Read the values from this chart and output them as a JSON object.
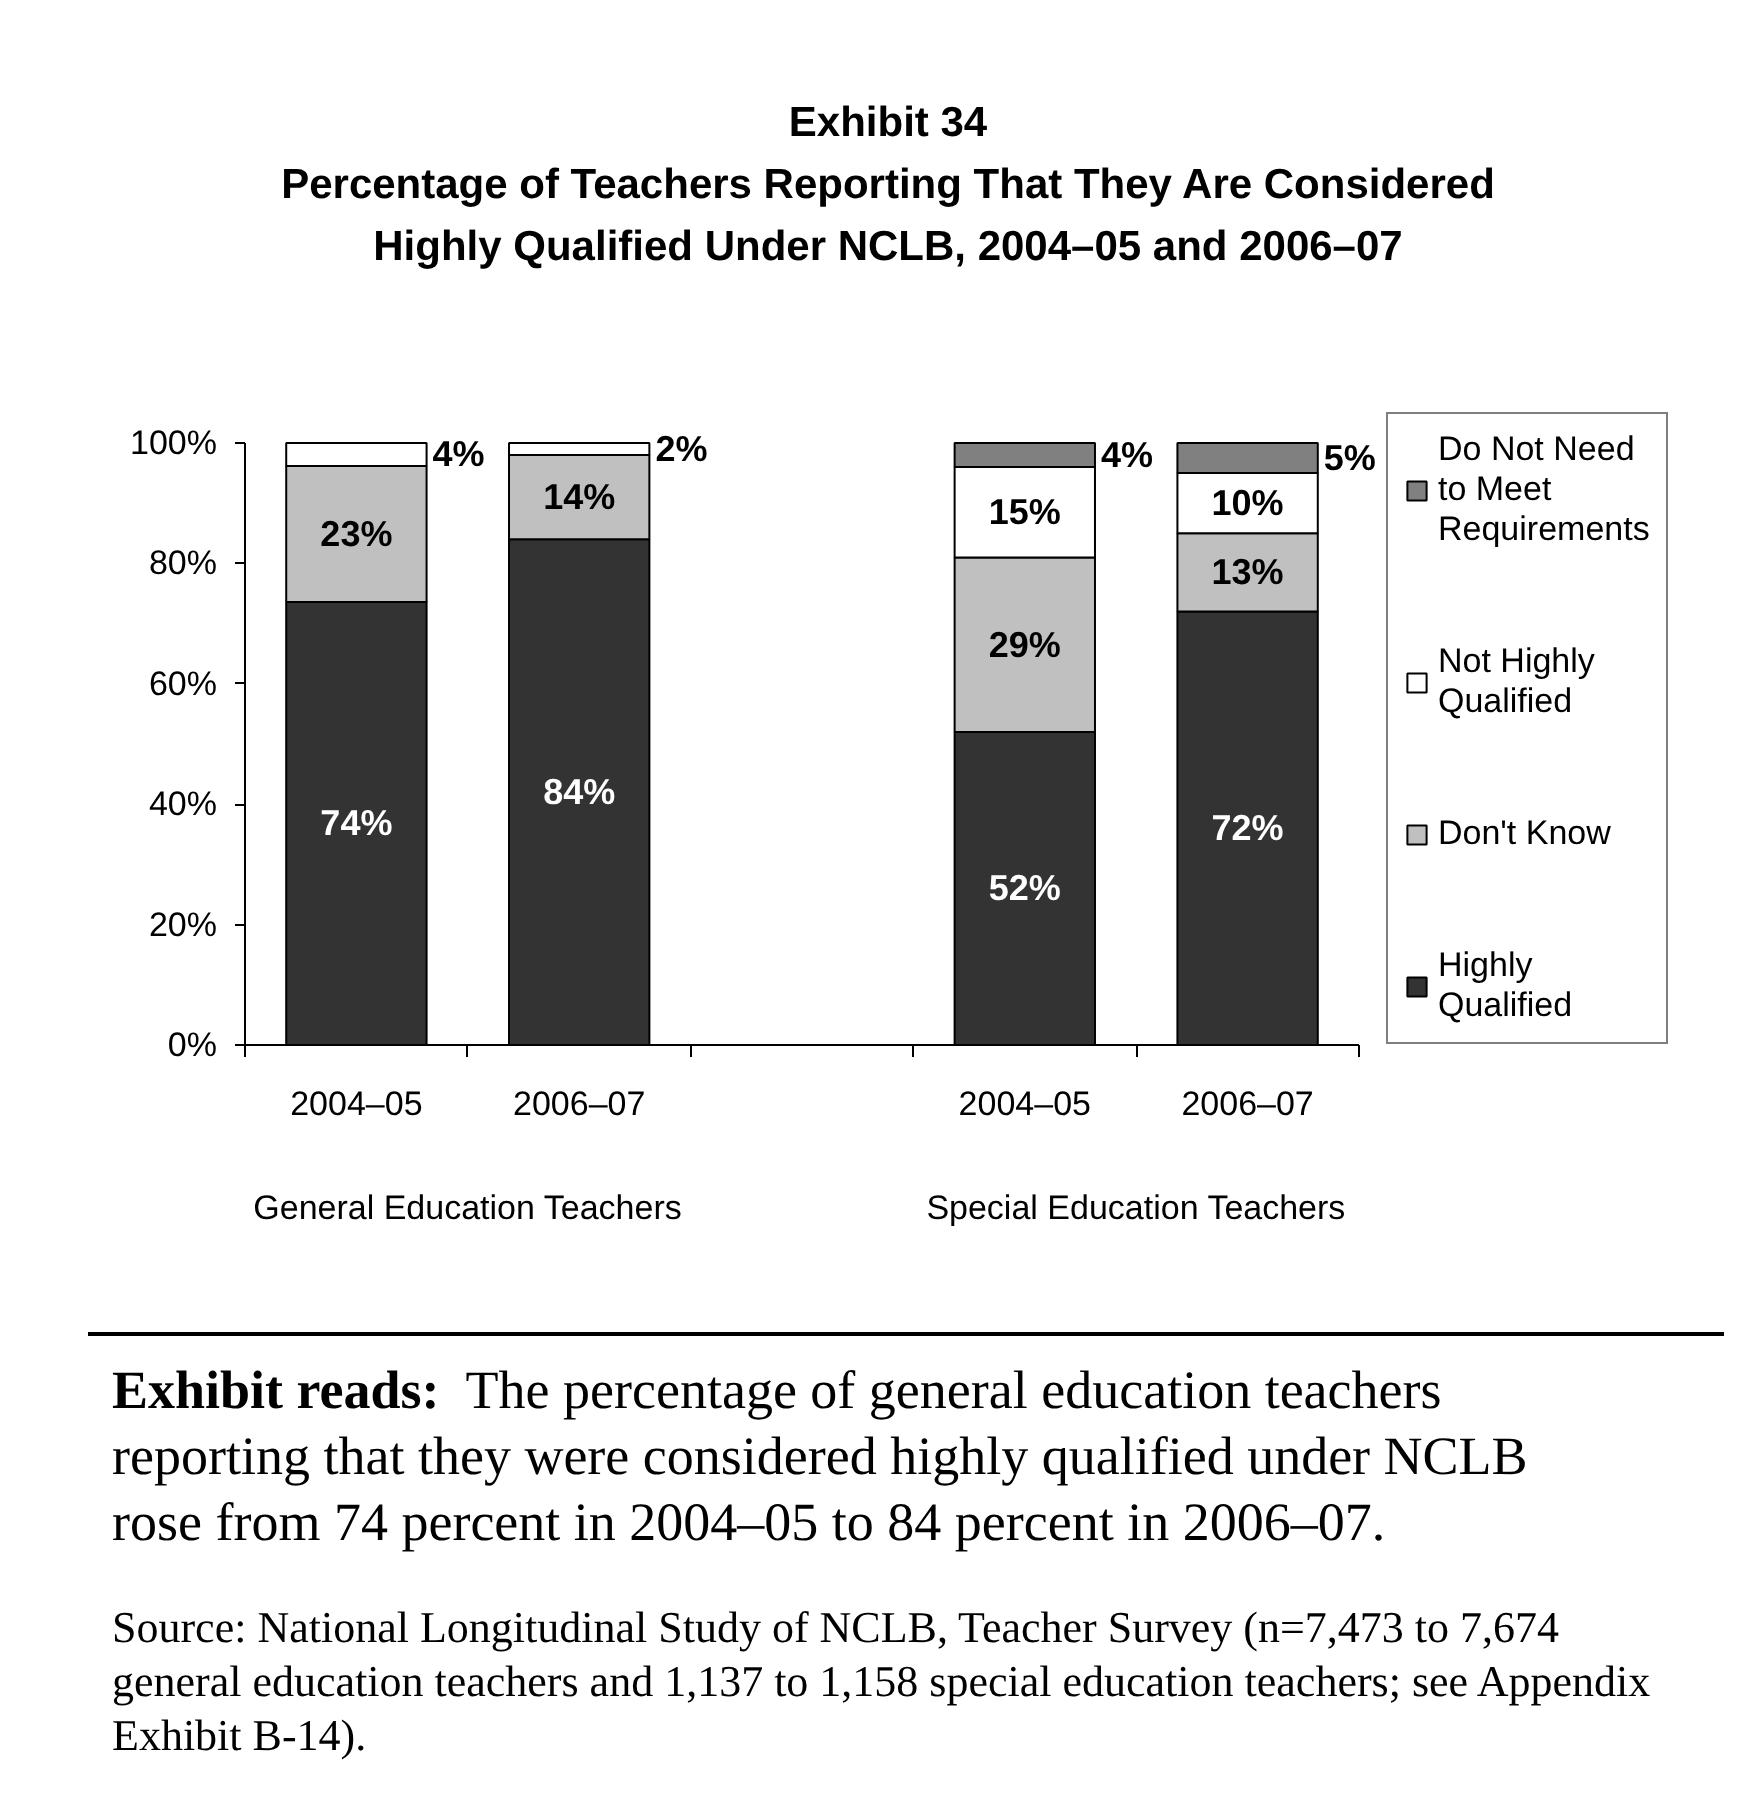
{
  "chart_data": {
    "type": "bar",
    "title": "Exhibit 34",
    "subtitle": "Percentage of Teachers Reporting That They Are Considered Highly Qualified Under NCLB, 2004–05 and 2006–07",
    "categories": [
      "2004–05",
      "2006–07",
      null,
      "2004–05",
      "2006–07"
    ],
    "stacked": true,
    "series": [
      {
        "name": "Highly Qualified",
        "color": "#333333",
        "values": [
          73.6,
          84,
          null,
          52,
          72
        ],
        "value_labels": [
          "74%",
          "84%",
          null,
          "52%",
          "72%"
        ]
      },
      {
        "name": "Don't Know",
        "color": "#c0c0c0",
        "values": [
          22.6,
          14,
          null,
          29,
          13
        ],
        "value_labels": [
          "23%",
          "14%",
          null,
          "29%",
          "13%"
        ]
      },
      {
        "name": "Not Highly Qualified",
        "color": "#ffffff",
        "values": [
          3.8,
          2,
          null,
          15,
          10
        ],
        "value_labels": [
          "4%",
          "2%",
          null,
          "15%",
          "10%"
        ]
      },
      {
        "name": "Do Not Need to Meet Requirements",
        "color": "#808080",
        "values": [
          null,
          null,
          null,
          4,
          5
        ],
        "value_labels": [
          null,
          null,
          null,
          "4%",
          "5%"
        ]
      }
    ],
    "ylim": [
      0,
      100
    ],
    "yticks": [
      {
        "value": 0,
        "label": "0%"
      },
      {
        "value": 20,
        "label": "20%"
      },
      {
        "value": 40,
        "label": "40%"
      },
      {
        "value": 60,
        "label": "60%"
      },
      {
        "value": 80,
        "label": "80%"
      },
      {
        "value": 100,
        "label": "100%"
      }
    ],
    "legend": "right",
    "annotations": [
      "General Education Teachers",
      "Special Education Teachers",
      "Exhibit reads:  The percentage of general education teachers reporting that they were considered highly qualified under NCLB rose from 74 percent in 2004–05 to 84 percent in 2006–07.",
      "Source: National Longitudinal Study of NCLB, Teacher Survey (n=7,473 to 7,674 general education teachers and 1,137 to 1,158 special education teachers; see Appendix Exhibit B-14)."
    ]
  }
}
